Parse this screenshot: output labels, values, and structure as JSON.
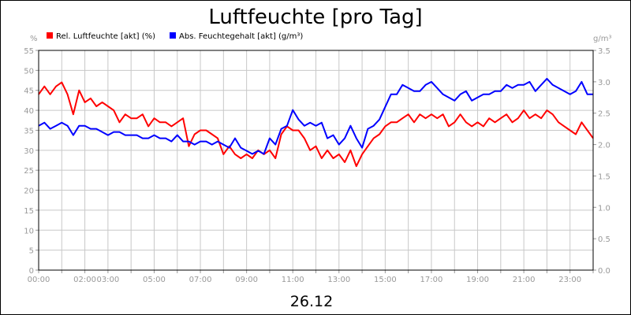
{
  "chart_data": {
    "type": "line",
    "title": "Luftfeuchte [pro Tag]",
    "date_label": "26.12",
    "y_left_unit": "%",
    "y_right_unit": "g/m³",
    "ylim_left": [
      0,
      55
    ],
    "ylim_right": [
      0,
      3.5
    ],
    "yticks_left": [
      "0",
      "5",
      "10",
      "15",
      "20",
      "25",
      "30",
      "35",
      "40",
      "45",
      "50",
      "55"
    ],
    "yticks_right": [
      "0.0",
      "0.5",
      "1.0",
      "1.5",
      "2.0",
      "2.5",
      "3.0",
      "3.5"
    ],
    "x_range_hours": [
      0,
      24
    ],
    "xticks": [
      {
        "hour": 0,
        "label": "00:00"
      },
      {
        "hour": 2,
        "label": "02:00"
      },
      {
        "hour": 3,
        "label": "03:00"
      },
      {
        "hour": 5,
        "label": "05:00"
      },
      {
        "hour": 7,
        "label": "07:00"
      },
      {
        "hour": 9,
        "label": "09:00"
      },
      {
        "hour": 11,
        "label": "11:00"
      },
      {
        "hour": 13,
        "label": "13:00"
      },
      {
        "hour": 15,
        "label": "15:00"
      },
      {
        "hour": 17,
        "label": "17:00"
      },
      {
        "hour": 19,
        "label": "19:00"
      },
      {
        "hour": 21,
        "label": "21:00"
      },
      {
        "hour": 23,
        "label": "23:00"
      }
    ],
    "grid": true,
    "legend_position": "top-left",
    "series": [
      {
        "name": "Rel. Luftfeuchte [akt] (%)",
        "axis": "left",
        "color": "#ff0000",
        "x": [
          0,
          0.25,
          0.5,
          0.75,
          1.0,
          1.25,
          1.5,
          1.75,
          2.0,
          2.25,
          2.5,
          2.75,
          3.0,
          3.25,
          3.5,
          3.75,
          4.0,
          4.25,
          4.5,
          4.75,
          5.0,
          5.25,
          5.5,
          5.75,
          6.0,
          6.25,
          6.5,
          6.75,
          7.0,
          7.25,
          7.5,
          7.75,
          8.0,
          8.25,
          8.5,
          8.75,
          9.0,
          9.25,
          9.5,
          9.75,
          10.0,
          10.25,
          10.5,
          10.75,
          11.0,
          11.25,
          11.5,
          11.75,
          12.0,
          12.25,
          12.5,
          12.75,
          13.0,
          13.25,
          13.5,
          13.75,
          14.0,
          14.25,
          14.5,
          14.75,
          15.0,
          15.25,
          15.5,
          15.75,
          16.0,
          16.25,
          16.5,
          16.75,
          17.0,
          17.25,
          17.5,
          17.75,
          18.0,
          18.25,
          18.5,
          18.75,
          19.0,
          19.25,
          19.5,
          19.75,
          20.0,
          20.25,
          20.5,
          20.75,
          21.0,
          21.25,
          21.5,
          21.75,
          22.0,
          22.25,
          22.5,
          22.75,
          23.0,
          23.25,
          23.5,
          23.75,
          24.0
        ],
        "values": [
          44,
          46,
          44,
          46,
          47,
          44,
          39,
          45,
          42,
          43,
          41,
          42,
          41,
          40,
          37,
          39,
          38,
          38,
          39,
          36,
          38,
          37,
          37,
          36,
          37,
          38,
          31,
          34,
          35,
          35,
          34,
          33,
          29,
          31,
          29,
          28,
          29,
          28,
          30,
          29,
          30,
          28,
          34,
          36,
          35,
          35,
          33,
          30,
          31,
          28,
          30,
          28,
          29,
          27,
          30,
          26,
          29,
          31,
          33,
          34,
          36,
          37,
          37,
          38,
          39,
          37,
          39,
          38,
          39,
          38,
          39,
          36,
          37,
          39,
          37,
          36,
          37,
          36,
          38,
          37,
          38,
          39,
          37,
          38,
          40,
          38,
          39,
          38,
          40,
          39,
          37,
          36,
          35,
          34,
          37,
          35,
          33
        ]
      },
      {
        "name": "Abs. Feuchtegehalt [akt] (g/m³)",
        "axis": "right",
        "color": "#0000ff",
        "x": [
          0,
          0.25,
          0.5,
          0.75,
          1.0,
          1.25,
          1.5,
          1.75,
          2.0,
          2.25,
          2.5,
          2.75,
          3.0,
          3.25,
          3.5,
          3.75,
          4.0,
          4.25,
          4.5,
          4.75,
          5.0,
          5.25,
          5.5,
          5.75,
          6.0,
          6.25,
          6.5,
          6.75,
          7.0,
          7.25,
          7.5,
          7.75,
          8.0,
          8.25,
          8.5,
          8.75,
          9.0,
          9.25,
          9.5,
          9.75,
          10.0,
          10.25,
          10.5,
          10.75,
          11.0,
          11.25,
          11.5,
          11.75,
          12.0,
          12.25,
          12.5,
          12.75,
          13.0,
          13.25,
          13.5,
          13.75,
          14.0,
          14.25,
          14.5,
          14.75,
          15.0,
          15.25,
          15.5,
          15.75,
          16.0,
          16.25,
          16.5,
          16.75,
          17.0,
          17.25,
          17.5,
          17.75,
          18.0,
          18.25,
          18.5,
          18.75,
          19.0,
          19.25,
          19.5,
          19.75,
          20.0,
          20.25,
          20.5,
          20.75,
          21.0,
          21.25,
          21.5,
          21.75,
          22.0,
          22.25,
          22.5,
          22.75,
          23.0,
          23.25,
          23.5,
          23.75,
          24.0
        ],
        "values": [
          2.3,
          2.35,
          2.25,
          2.3,
          2.35,
          2.3,
          2.15,
          2.3,
          2.3,
          2.25,
          2.25,
          2.2,
          2.15,
          2.2,
          2.2,
          2.15,
          2.15,
          2.15,
          2.1,
          2.1,
          2.15,
          2.1,
          2.1,
          2.05,
          2.15,
          2.05,
          2.05,
          2.0,
          2.05,
          2.05,
          2.0,
          2.05,
          2.0,
          1.95,
          2.1,
          1.95,
          1.9,
          1.85,
          1.9,
          1.85,
          2.1,
          2.0,
          2.25,
          2.3,
          2.55,
          2.4,
          2.3,
          2.35,
          2.3,
          2.35,
          2.1,
          2.15,
          2.0,
          2.1,
          2.3,
          2.1,
          1.95,
          2.25,
          2.3,
          2.4,
          2.6,
          2.8,
          2.8,
          2.95,
          2.9,
          2.85,
          2.85,
          2.95,
          3.0,
          2.9,
          2.8,
          2.75,
          2.7,
          2.8,
          2.85,
          2.7,
          2.75,
          2.8,
          2.8,
          2.85,
          2.85,
          2.95,
          2.9,
          2.95,
          2.95,
          3.0,
          2.85,
          2.95,
          3.05,
          2.95,
          2.9,
          2.85,
          2.8,
          2.85,
          3.0,
          2.8,
          2.8
        ]
      }
    ]
  }
}
